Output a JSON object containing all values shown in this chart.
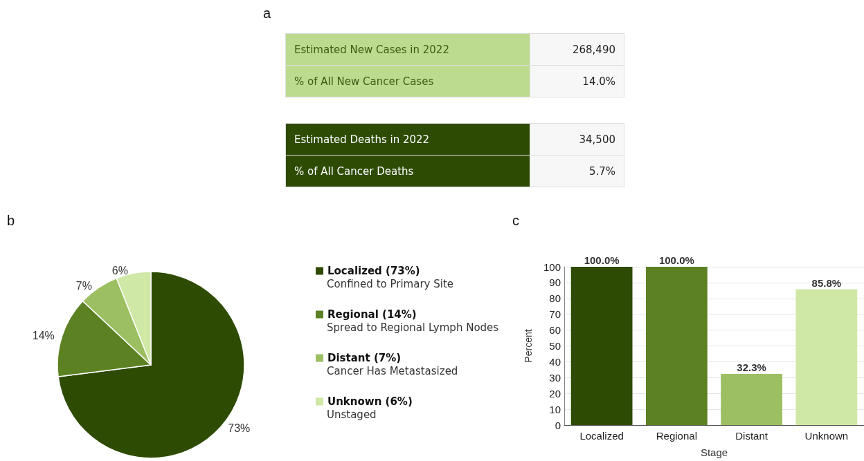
{
  "chart_data": [
    {
      "type": "other",
      "title": "a",
      "annotations": [
        "Estimated New Cases in 2022",
        "268,490",
        "% of All New Cancer Cases",
        "14.0%",
        "Estimated Deaths in 2022",
        "34,500",
        "% of All Cancer Deaths",
        "5.7%"
      ]
    },
    {
      "type": "pie",
      "title": "b",
      "categories": [
        "Localized (73%)",
        "Regional (14%)",
        "Distant (7%)",
        "Unknown (6%)"
      ],
      "values": [
        73,
        14,
        7,
        6
      ],
      "colors": [
        "#2e4b04",
        "#5b8122",
        "#9cbf62",
        "#cfe8a5"
      ],
      "value_labels": [
        "73%",
        "14%",
        "7%",
        "6%"
      ],
      "legend": "right",
      "annotations": [
        "Confined to Primary Site",
        "Spread to Regional Lymph Nodes",
        "Cancer Has Metastasized",
        "Unstaged"
      ]
    },
    {
      "type": "bar",
      "title": "c",
      "categories": [
        "Localized",
        "Regional",
        "Distant",
        "Unknown"
      ],
      "values": [
        100,
        100,
        32.3,
        85.8
      ],
      "colors": [
        "#2e4b04",
        "#5b8122",
        "#9cbf62",
        "#cfe8a5"
      ],
      "value_labels": [
        "100.0%",
        "100.0%",
        "32.3%",
        "85.8%"
      ],
      "xlabel": "Stage",
      "ylabel": "Percent",
      "ylim": [
        0,
        100
      ],
      "yticks": [
        0,
        10,
        20,
        30,
        40,
        50,
        60,
        70,
        80,
        90,
        100
      ],
      "grid": "y"
    }
  ]
}
